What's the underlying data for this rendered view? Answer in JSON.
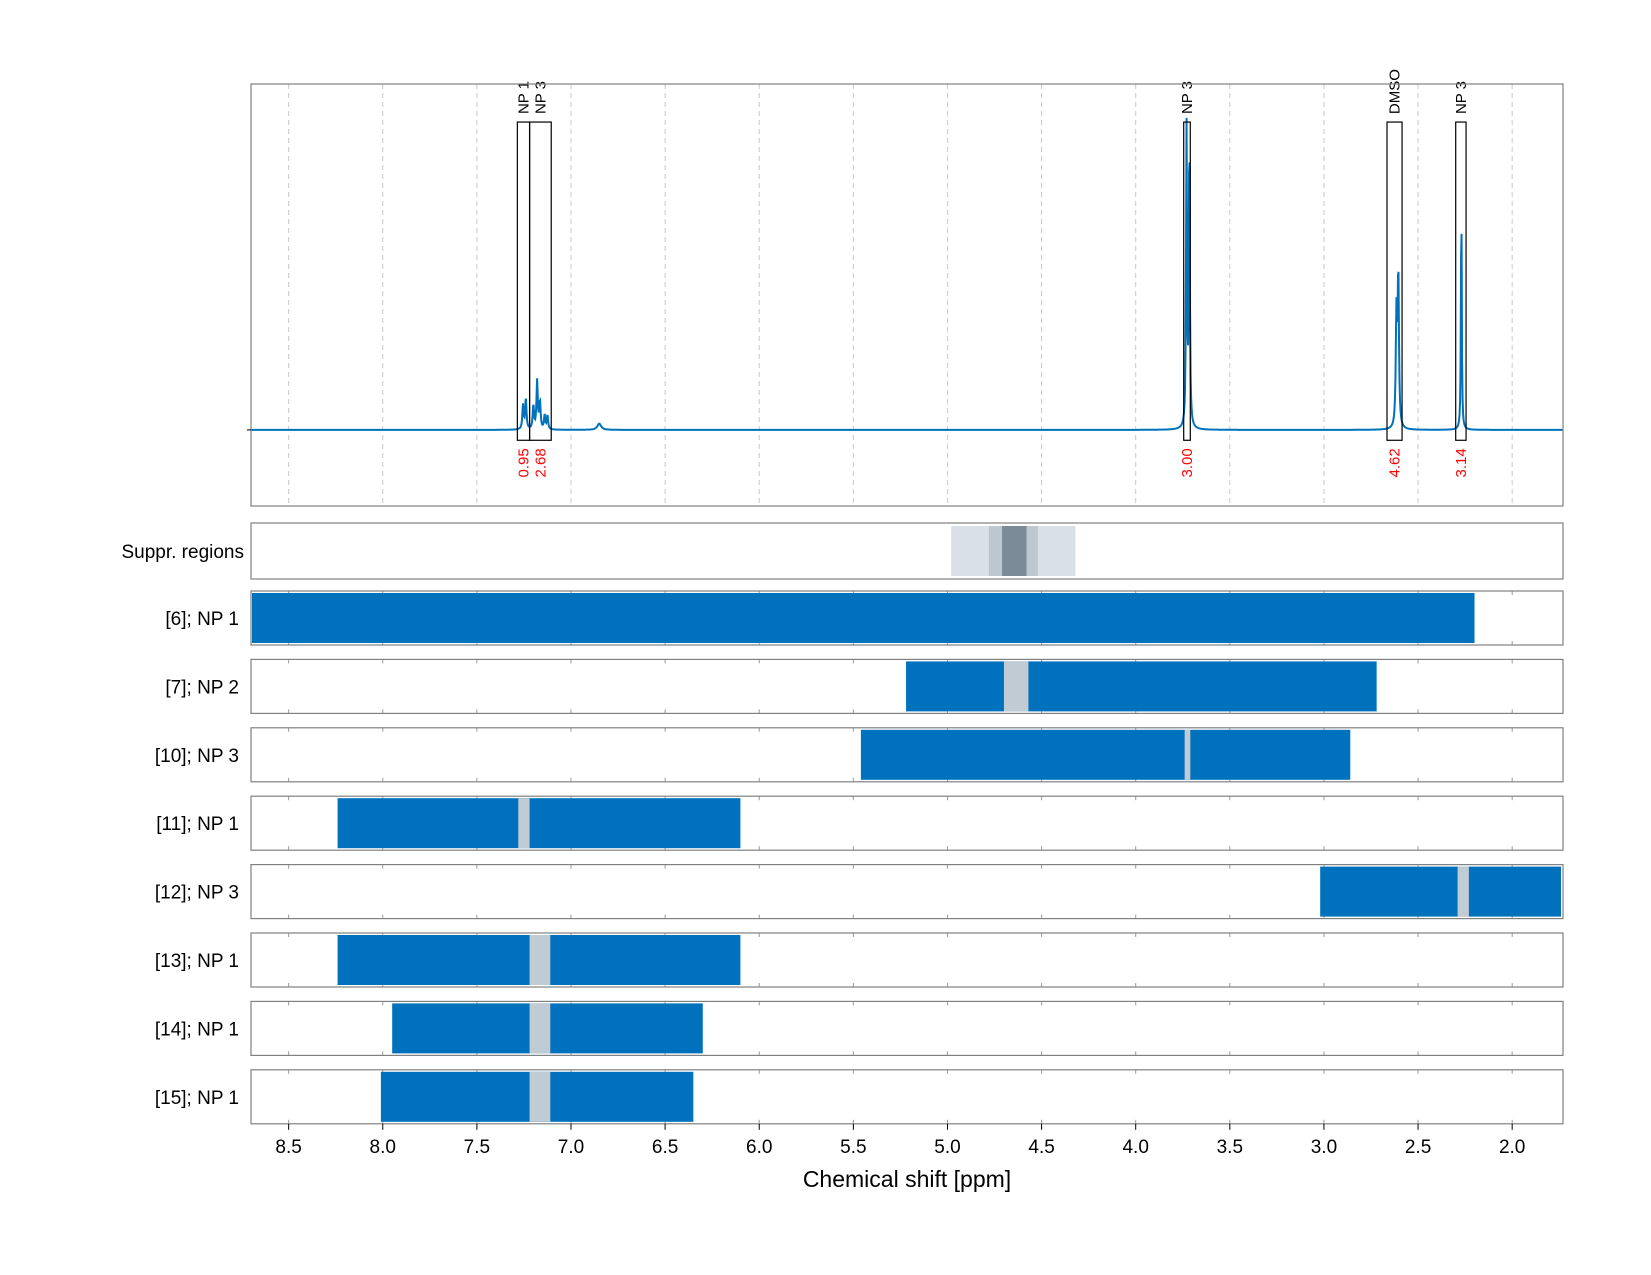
{
  "chart_data": {
    "type": "line",
    "xlabel": "Chemical shift [ppm]",
    "ylabel": "",
    "title": "",
    "xlim": [
      8.7,
      1.73
    ],
    "x_reversed": true,
    "xticks": [
      8.5,
      8.0,
      7.5,
      7.0,
      6.5,
      6.0,
      5.5,
      5.0,
      4.5,
      4.0,
      3.5,
      3.0,
      2.5,
      2.0
    ],
    "xtick_labels": [
      "8.5",
      "8.0",
      "7.5",
      "7.0",
      "6.5",
      "6.0",
      "5.5",
      "5.0",
      "4.5",
      "4.0",
      "3.5",
      "3.0",
      "2.5",
      "2.0"
    ],
    "grid": true,
    "spectrum": {
      "color": "#0072bd",
      "baseline": 0,
      "ylim": [
        -0.22,
        1.0
      ],
      "peaks": [
        {
          "x": 7.255,
          "h": 0.07,
          "w": 0.004
        },
        {
          "x": 7.24,
          "h": 0.09,
          "w": 0.004
        },
        {
          "x": 7.2,
          "h": 0.07,
          "w": 0.004
        },
        {
          "x": 7.18,
          "h": 0.14,
          "w": 0.004
        },
        {
          "x": 7.165,
          "h": 0.08,
          "w": 0.004
        },
        {
          "x": 7.14,
          "h": 0.04,
          "w": 0.004
        },
        {
          "x": 7.125,
          "h": 0.04,
          "w": 0.004
        },
        {
          "x": 6.85,
          "h": 0.018,
          "w": 0.012
        },
        {
          "x": 3.73,
          "h": 0.87,
          "w": 0.003
        },
        {
          "x": 3.715,
          "h": 0.87,
          "w": 0.003
        },
        {
          "x": 2.605,
          "h": 0.45,
          "w": 0.004
        },
        {
          "x": 2.615,
          "h": 0.32,
          "w": 0.004
        },
        {
          "x": 2.27,
          "h": 0.69,
          "w": 0.0025
        }
      ]
    },
    "peak_annotations": [
      {
        "label": "NP 1",
        "integral": "0.95",
        "x1": 7.285,
        "x2": 7.22,
        "top": 0.89
      },
      {
        "label": "NP 3",
        "integral": "2.68",
        "x1": 7.22,
        "x2": 7.105,
        "top": 0.89
      },
      {
        "label": "NP 3",
        "integral": "3.00",
        "x1": 3.745,
        "x2": 3.71,
        "top": 0.89
      },
      {
        "label": "DMSO",
        "integral": "4.62",
        "x1": 2.665,
        "x2": 2.585,
        "top": 0.89
      },
      {
        "label": "NP 3",
        "integral": "3.14",
        "x1": 2.3,
        "x2": 2.245,
        "top": 0.89
      }
    ],
    "annotation_colors": {
      "box": "#000000",
      "integral": "#ff0000"
    },
    "suppression_regions": {
      "label": "Suppr. regions",
      "bands": [
        {
          "x1": 4.98,
          "x2": 4.32,
          "color": "#d9e0e7"
        },
        {
          "x1": 4.78,
          "x2": 4.52,
          "color": "#bcc7d0"
        },
        {
          "x1": 4.71,
          "x2": 4.58,
          "color": "#7a8a96"
        }
      ]
    },
    "rows": [
      {
        "label": "[6]; NP 1",
        "bars": [
          {
            "x1": 8.7,
            "x2": 2.2
          }
        ],
        "gaps": []
      },
      {
        "label": "[7]; NP 2",
        "bars": [
          {
            "x1": 5.22,
            "x2": 2.72
          }
        ],
        "gaps": [
          {
            "x1": 4.7,
            "x2": 4.57
          }
        ]
      },
      {
        "label": "[10]; NP 3",
        "bars": [
          {
            "x1": 5.46,
            "x2": 2.86
          }
        ],
        "gaps": [
          {
            "x1": 3.74,
            "x2": 3.71
          }
        ]
      },
      {
        "label": "[11]; NP 1",
        "bars": [
          {
            "x1": 8.24,
            "x2": 6.1
          }
        ],
        "gaps": [
          {
            "x1": 7.28,
            "x2": 7.22
          }
        ]
      },
      {
        "label": "[12]; NP 3",
        "bars": [
          {
            "x1": 3.02,
            "x2": 1.74
          }
        ],
        "gaps": [
          {
            "x1": 2.29,
            "x2": 2.23
          }
        ]
      },
      {
        "label": "[13]; NP 1",
        "bars": [
          {
            "x1": 8.24,
            "x2": 6.1
          }
        ],
        "gaps": [
          {
            "x1": 7.22,
            "x2": 7.11
          }
        ]
      },
      {
        "label": "[14]; NP 1",
        "bars": [
          {
            "x1": 7.95,
            "x2": 6.3
          }
        ],
        "gaps": [
          {
            "x1": 7.22,
            "x2": 7.11
          }
        ]
      },
      {
        "label": "[15]; NP 1",
        "bars": [
          {
            "x1": 8.01,
            "x2": 6.35
          }
        ],
        "gaps": [
          {
            "x1": 7.22,
            "x2": 7.11
          }
        ]
      }
    ],
    "colors": {
      "bar": "#0072bd",
      "gap": "#c0cbd3",
      "frame": "#808080",
      "grid": "#c8c8c8"
    }
  }
}
